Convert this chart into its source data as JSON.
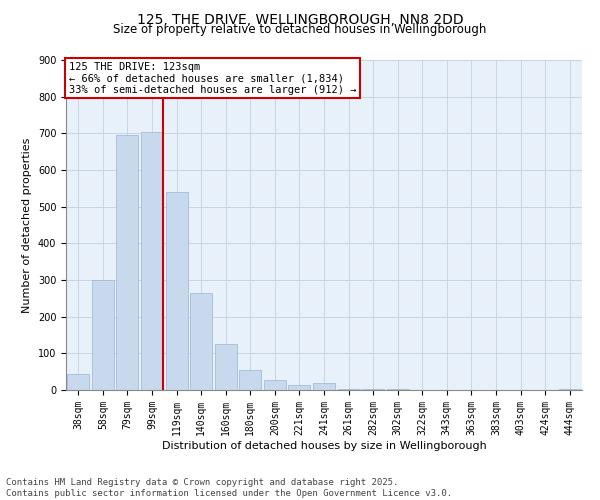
{
  "title": "125, THE DRIVE, WELLINGBOROUGH, NN8 2DD",
  "subtitle": "Size of property relative to detached houses in Wellingborough",
  "xlabel": "Distribution of detached houses by size in Wellingborough",
  "ylabel": "Number of detached properties",
  "categories": [
    "38sqm",
    "58sqm",
    "79sqm",
    "99sqm",
    "119sqm",
    "140sqm",
    "160sqm",
    "180sqm",
    "200sqm",
    "221sqm",
    "241sqm",
    "261sqm",
    "282sqm",
    "302sqm",
    "322sqm",
    "343sqm",
    "363sqm",
    "383sqm",
    "403sqm",
    "424sqm",
    "444sqm"
  ],
  "values": [
    45,
    300,
    695,
    705,
    540,
    265,
    125,
    55,
    28,
    13,
    18,
    2,
    2,
    2,
    1,
    1,
    0,
    0,
    0,
    0,
    2
  ],
  "bar_color": "#c8d9ee",
  "bar_edge_color": "#9ab5d4",
  "vline_bar_index": 3,
  "vline_color": "#cc0000",
  "annotation_title": "125 THE DRIVE: 123sqm",
  "annotation_line1": "← 66% of detached houses are smaller (1,834)",
  "annotation_line2": "33% of semi-detached houses are larger (912) →",
  "annotation_box_color": "#ffffff",
  "annotation_box_edge": "#cc0000",
  "ylim": [
    0,
    900
  ],
  "yticks": [
    0,
    100,
    200,
    300,
    400,
    500,
    600,
    700,
    800,
    900
  ],
  "footer1": "Contains HM Land Registry data © Crown copyright and database right 2025.",
  "footer2": "Contains public sector information licensed under the Open Government Licence v3.0.",
  "background_color": "#ffffff",
  "plot_bg_color": "#e8f0fa",
  "grid_color": "#c8d4e8",
  "title_fontsize": 10,
  "subtitle_fontsize": 8.5,
  "axis_label_fontsize": 8,
  "tick_fontsize": 7,
  "annotation_fontsize": 7.5,
  "footer_fontsize": 6.5
}
